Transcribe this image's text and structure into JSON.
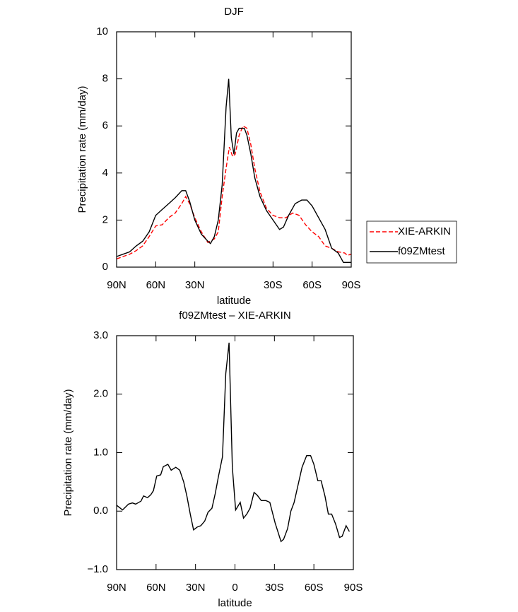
{
  "chart_data": [
    {
      "type": "line",
      "title": "DJF",
      "xlabel": "latitude",
      "ylabel": "Precipitation rate (mm/day)",
      "xlim": [
        90,
        -90
      ],
      "xticks": [
        {
          "value": 90,
          "label": "90N"
        },
        {
          "value": 60,
          "label": "60N"
        },
        {
          "value": 30,
          "label": "30N"
        },
        {
          "value": -30,
          "label": "30S"
        },
        {
          "value": -60,
          "label": "60S"
        },
        {
          "value": -90,
          "label": "90S"
        }
      ],
      "ylim": [
        0,
        10
      ],
      "yticks": [
        0,
        2,
        4,
        6,
        8,
        10
      ],
      "legend": "right",
      "series": [
        {
          "name": "XIE-ARKIN",
          "color": "#ff0000",
          "dashed": true,
          "x": [
            90,
            85,
            80,
            75,
            70,
            65,
            60,
            55,
            50,
            45,
            40,
            37,
            34,
            30,
            25,
            20,
            15,
            12,
            9,
            6,
            3.5,
            1,
            -1,
            -4,
            -7,
            -10,
            -13,
            -16,
            -20,
            -25,
            -30,
            -35,
            -40,
            -45,
            -50,
            -55,
            -60,
            -65,
            -70,
            -75,
            -80,
            -85,
            -87,
            -90
          ],
          "values": [
            0.35,
            0.45,
            0.55,
            0.7,
            0.9,
            1.3,
            1.75,
            1.8,
            2.1,
            2.3,
            2.7,
            3.0,
            2.7,
            2.1,
            1.5,
            1.05,
            1.2,
            1.5,
            3.0,
            4.2,
            5.1,
            4.7,
            4.8,
            5.6,
            6.0,
            5.9,
            5.2,
            4.2,
            3.2,
            2.5,
            2.2,
            2.1,
            2.1,
            2.3,
            2.2,
            1.8,
            1.5,
            1.3,
            0.9,
            0.8,
            0.65,
            0.6,
            0.5,
            0.55
          ]
        },
        {
          "name": "f09ZMtest",
          "color": "#000000",
          "dashed": false,
          "x": [
            90,
            85,
            80,
            75,
            70,
            65,
            60,
            55,
            50,
            45,
            40,
            37,
            34,
            30,
            25,
            20,
            18,
            15,
            12,
            9,
            6,
            4,
            2,
            0,
            -2,
            -4,
            -8,
            -10,
            -13,
            -16,
            -20,
            -25,
            -30,
            -35,
            -38,
            -42,
            -47,
            -52,
            -56,
            -60,
            -65,
            -70,
            -75,
            -80,
            -84,
            -87,
            -90
          ],
          "values": [
            0.45,
            0.55,
            0.65,
            0.9,
            1.1,
            1.5,
            2.2,
            2.45,
            2.7,
            2.95,
            3.25,
            3.25,
            2.8,
            2.0,
            1.4,
            1.1,
            1.0,
            1.3,
            2.0,
            3.5,
            6.8,
            8.0,
            5.5,
            4.8,
            5.7,
            5.9,
            5.9,
            5.6,
            4.8,
            3.8,
            3.0,
            2.4,
            2.0,
            1.6,
            1.7,
            2.2,
            2.7,
            2.85,
            2.85,
            2.6,
            2.1,
            1.6,
            0.8,
            0.6,
            0.2,
            0.2,
            0.2
          ]
        }
      ]
    },
    {
      "type": "line",
      "title": "f09ZMtest – XIE-ARKIN",
      "xlabel": "latitude",
      "ylabel": "Precipitation rate (mm/day)",
      "xlim": [
        90,
        -90
      ],
      "xticks": [
        {
          "value": 90,
          "label": "90N"
        },
        {
          "value": 60,
          "label": "60N"
        },
        {
          "value": 30,
          "label": "30N"
        },
        0,
        {
          "value": -30,
          "label": "30S"
        },
        {
          "value": -60,
          "label": "60S"
        },
        {
          "value": -90,
          "label": "90S"
        }
      ],
      "ylim": [
        -1,
        3
      ],
      "yticks": [
        {
          "value": -1,
          "label": "−1.0"
        },
        {
          "value": 0,
          "label": "0.0"
        },
        {
          "value": 1,
          "label": "1.0"
        },
        {
          "value": 2,
          "label": "2.0"
        },
        {
          "value": 3,
          "label": "3.0"
        }
      ],
      "series": [
        {
          "color": "#000000",
          "dashed": false,
          "x": [
            90,
            85.5,
            81,
            78,
            75.5,
            71.5,
            69.5,
            66.5,
            64,
            62,
            59.5,
            56.5,
            54.5,
            51,
            48.5,
            45,
            42,
            39,
            36.5,
            34,
            31.5,
            28.5,
            26,
            23,
            20.5,
            17.5,
            15,
            12.5,
            9.5,
            7,
            4.5,
            2,
            -0.5,
            -4,
            -6.5,
            -9,
            -11.5,
            -14.5,
            -17,
            -20,
            -23.5,
            -26.5,
            -30.5,
            -35,
            -37,
            -40,
            -42.5,
            -45,
            -48,
            -51,
            -54.5,
            -57.5,
            -60,
            -63,
            -65.5,
            -68.5,
            -71,
            -73.5,
            -76.5,
            -79.5,
            -81.5,
            -84.5,
            -87
          ],
          "values": [
            0.1,
            0.02,
            0.12,
            0.14,
            0.12,
            0.17,
            0.26,
            0.23,
            0.28,
            0.35,
            0.6,
            0.62,
            0.76,
            0.8,
            0.7,
            0.75,
            0.7,
            0.5,
            0.25,
            -0.05,
            -0.32,
            -0.27,
            -0.25,
            -0.17,
            -0.02,
            0.05,
            0.3,
            0.6,
            0.93,
            2.35,
            2.88,
            0.75,
            0.02,
            0.15,
            -0.12,
            -0.05,
            0.05,
            0.32,
            0.27,
            0.18,
            0.18,
            0.15,
            -0.2,
            -0.52,
            -0.48,
            -0.3,
            0.0,
            0.15,
            0.45,
            0.75,
            0.95,
            0.95,
            0.8,
            0.52,
            0.52,
            0.25,
            -0.05,
            -0.05,
            -0.22,
            -0.45,
            -0.43,
            -0.25,
            -0.35
          ]
        }
      ]
    }
  ]
}
